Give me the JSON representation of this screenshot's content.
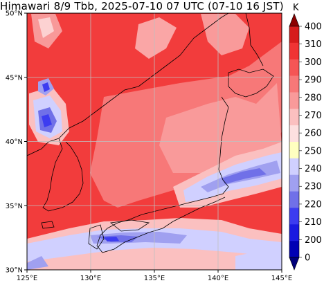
{
  "title": "Himawari 8/9 Tbb, 2025-07-10 07 UTC (07-10 16 JST)",
  "map": {
    "lat_ticks": [
      "50°N",
      "45°N",
      "40°N",
      "35°N",
      "30°N"
    ],
    "lon_ticks": [
      "125°E",
      "130°E",
      "135°E",
      "140°E",
      "145°E"
    ],
    "lat_range": [
      30,
      50
    ],
    "lon_range": [
      125,
      145
    ],
    "gridlines": true,
    "base_color": "#f23c3c"
  },
  "colorbar": {
    "unit": "K",
    "labels": [
      "400",
      "310",
      "300",
      "290",
      "280",
      "270",
      "260",
      "250",
      "240",
      "230",
      "220",
      "210",
      "200",
      "0"
    ],
    "colors": [
      "#d61c1c",
      "#f03434",
      "#f55555",
      "#f77878",
      "#f99a9a",
      "#fbc0c0",
      "#fde0e0",
      "#ffffc0",
      "#d0d0ff",
      "#a0a0f0",
      "#7070e8",
      "#3c3cf0",
      "#1a1ae0",
      "#0000b4"
    ],
    "top_color": "#8b0000",
    "bottom_color": "#00007a"
  }
}
